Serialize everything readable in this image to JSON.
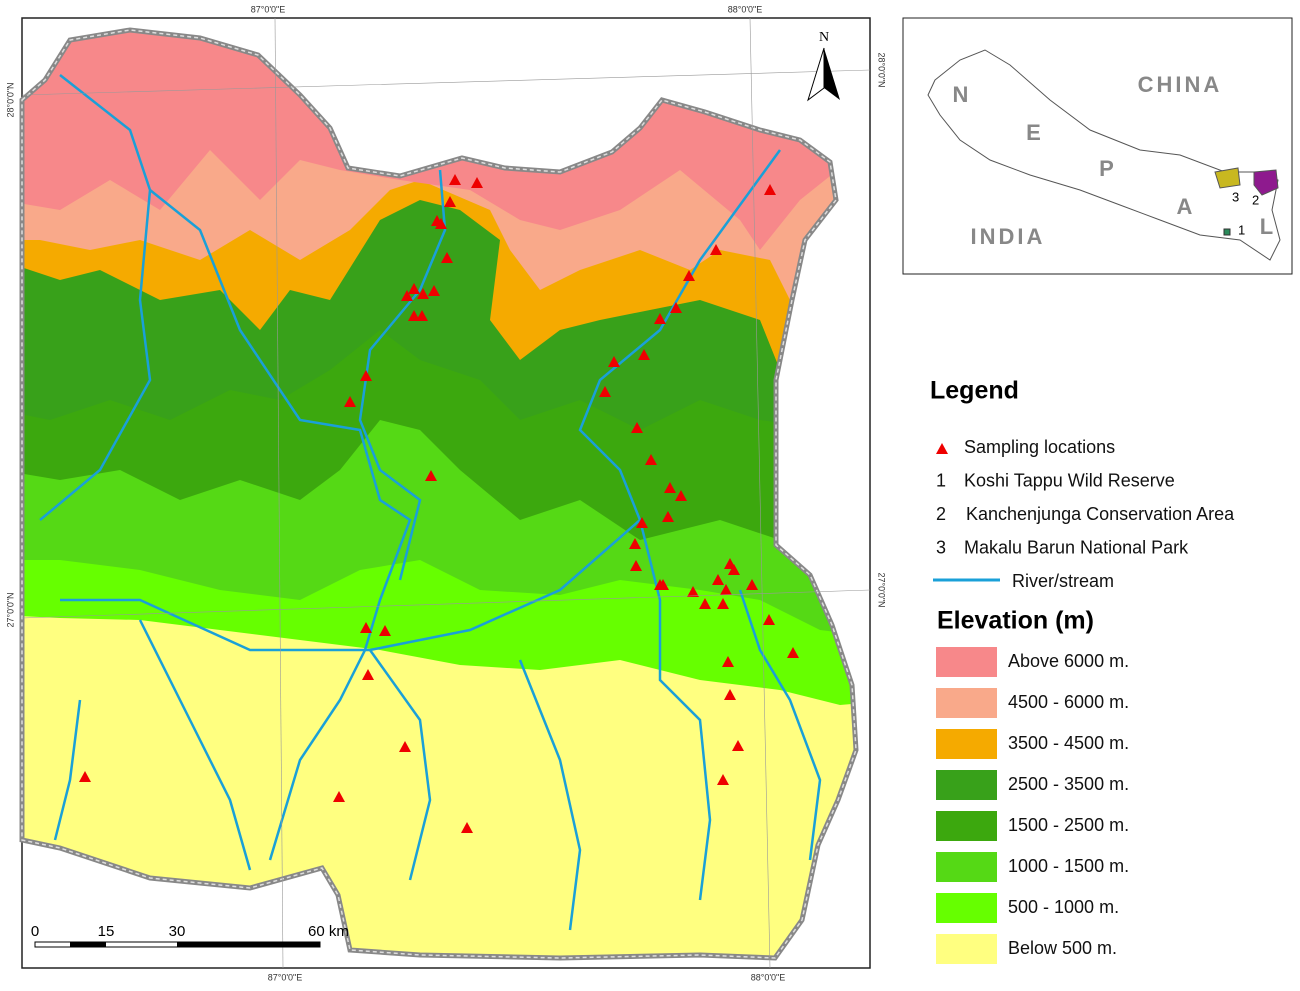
{
  "map": {
    "coords": {
      "top_left": "87°0'0\"E",
      "top_right": "88°0'0\"E",
      "bottom_left": "87°0'0\"E",
      "bottom_right": "88°0'0\"E",
      "left_top": "28°0'0\"N",
      "left_bottom": "27°0'0\"N",
      "right_top": "28°0'0\"N",
      "right_bottom": "27°0'0\"N"
    },
    "north": "N",
    "scale_bar": [
      "0",
      "15",
      "30",
      "60 km"
    ]
  },
  "inset": {
    "china": "CHINA",
    "india": "INDIA",
    "nepal_letters": [
      "N",
      "E",
      "P",
      "A",
      "L"
    ],
    "area_numbers": [
      "1",
      "2",
      "3"
    ]
  },
  "legend": {
    "title": "Legend",
    "items": [
      {
        "number": null,
        "label": "Sampling locations"
      },
      {
        "number": "1",
        "label": "Koshi Tappu Wild Reserve"
      },
      {
        "number": "2",
        "label": "Kanchenjunga Conservation Area"
      },
      {
        "number": "3",
        "label": "Makalu Barun National Park"
      },
      {
        "number": null,
        "label": "River/stream"
      }
    ],
    "elevation_title": "Elevation (m)",
    "elevation_classes": [
      {
        "label": "Above 6000 m.",
        "color": "#f7888a"
      },
      {
        "label": "4500 - 6000 m.",
        "color": "#f9a98a"
      },
      {
        "label": "3500 - 4500 m.",
        "color": "#f5aa00"
      },
      {
        "label": "2500 - 3500 m.",
        "color": "#38a11a"
      },
      {
        "label": "1500 - 2500 m.",
        "color": "#3ca80e"
      },
      {
        "label": "1000 - 1500 m.",
        "color": "#55d915"
      },
      {
        "label": "500 - 1000 m.",
        "color": "#66ff00"
      },
      {
        "label": "Below 500 m.",
        "color": "#ffff80"
      }
    ]
  }
}
